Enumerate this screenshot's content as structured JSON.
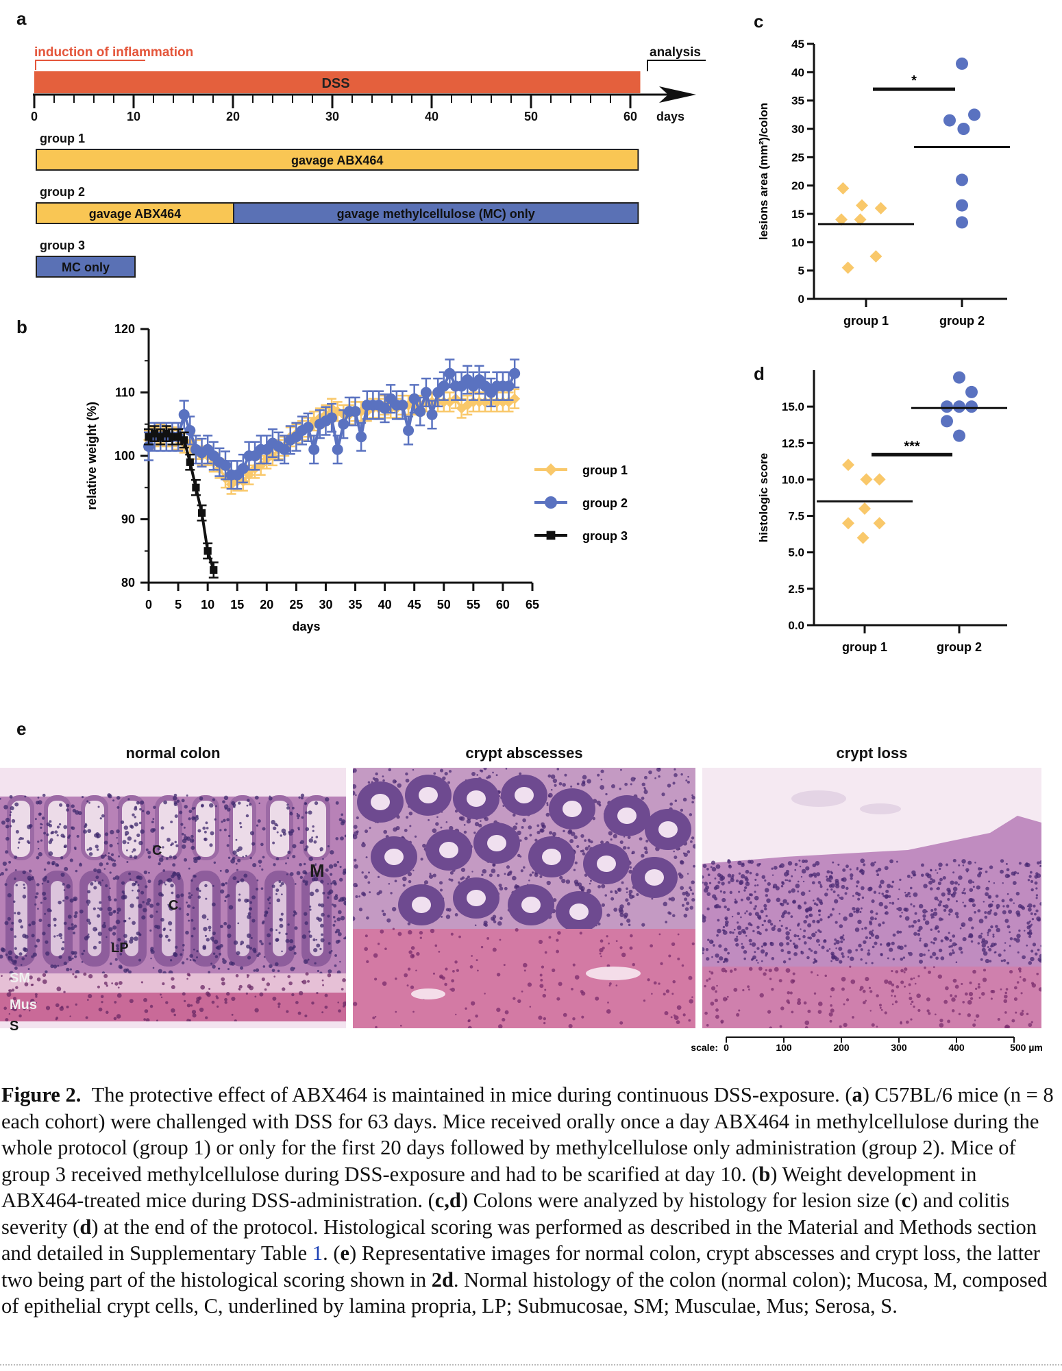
{
  "panel_labels": {
    "a": "a",
    "b": "b",
    "c": "c",
    "d": "d",
    "e": "e"
  },
  "panel_a": {
    "induction_label": "induction of inflammation",
    "dss_label": "DSS",
    "analysis_label": "analysis",
    "axis_ticks": [
      "0",
      "10",
      "20",
      "30",
      "40",
      "50",
      "60"
    ],
    "axis_unit": "days",
    "groups": [
      {
        "name": "group 1",
        "bars": [
          {
            "label": "gavage ABX464",
            "start": 0,
            "end": 61,
            "color": "#f9c654"
          }
        ]
      },
      {
        "name": "group 2",
        "bars": [
          {
            "label": "gavage ABX464",
            "start": 0,
            "end": 20,
            "color": "#f9c654"
          },
          {
            "label": "gavage methylcellulose (MC) only",
            "start": 20,
            "end": 61,
            "color": "#5a71b5"
          }
        ]
      },
      {
        "name": "group 3",
        "bars": [
          {
            "label": "MC only",
            "start": 0,
            "end": 10,
            "color": "#5a71b5"
          }
        ]
      }
    ],
    "colors": {
      "induction": "#e4553a",
      "dss_bar": "#e4603d"
    }
  },
  "chart_data": [
    {
      "panel": "b",
      "type": "line",
      "xlabel": "days",
      "ylabel": "relative weight (%)",
      "xlim": [
        0,
        65
      ],
      "ylim": [
        80,
        120
      ],
      "xticks": [
        0,
        5,
        10,
        15,
        20,
        25,
        30,
        35,
        40,
        45,
        50,
        55,
        60,
        65
      ],
      "yticks": [
        80,
        90,
        100,
        110,
        120
      ],
      "legend_position": "right",
      "series": [
        {
          "name": "group 1",
          "color": "#f9c86a",
          "marker": "diamond",
          "x": [
            0,
            1,
            2,
            3,
            4,
            5,
            6,
            7,
            8,
            9,
            10,
            11,
            12,
            13,
            14,
            15,
            16,
            17,
            18,
            19,
            20,
            21,
            22,
            23,
            24,
            25,
            26,
            27,
            28,
            29,
            30,
            31,
            32,
            33,
            34,
            35,
            36,
            37,
            38,
            39,
            40,
            41,
            42,
            43,
            44,
            45,
            46,
            47,
            48,
            49,
            50,
            51,
            52,
            53,
            54,
            55,
            56,
            57,
            58,
            59,
            60,
            61,
            62
          ],
          "y": [
            102.5,
            103,
            103.5,
            103,
            103,
            102.5,
            102,
            102,
            101,
            100,
            100,
            99,
            98,
            96.5,
            95.5,
            96,
            96,
            97,
            98,
            98.5,
            99.5,
            100,
            101,
            101.5,
            103,
            103.5,
            104,
            104.5,
            105.5,
            106,
            106.5,
            107.5,
            107,
            106.5,
            106.5,
            107,
            107,
            107,
            107.5,
            107.5,
            108,
            107.5,
            107.5,
            108,
            108,
            108,
            108,
            108.5,
            108.5,
            108.5,
            108.5,
            108.5,
            109,
            107.5,
            108,
            108.5,
            108.5,
            108.5,
            108.5,
            108.5,
            108.5,
            108.5,
            109
          ],
          "err": 1.5
        },
        {
          "name": "group 2",
          "color": "#5a72c0",
          "marker": "circle",
          "x": [
            0,
            1,
            2,
            3,
            4,
            5,
            6,
            7,
            8,
            9,
            10,
            11,
            12,
            13,
            14,
            15,
            16,
            17,
            18,
            19,
            20,
            21,
            22,
            23,
            24,
            25,
            26,
            27,
            28,
            29,
            30,
            31,
            32,
            33,
            34,
            35,
            36,
            37,
            38,
            39,
            40,
            41,
            42,
            43,
            44,
            45,
            46,
            47,
            48,
            49,
            50,
            51,
            52,
            53,
            54,
            55,
            56,
            57,
            58,
            59,
            60,
            61,
            62
          ],
          "y": [
            101.5,
            103,
            103,
            103,
            103,
            103,
            106.5,
            104,
            101,
            100.5,
            101,
            100,
            99,
            98.5,
            97,
            97,
            98,
            100,
            100,
            101,
            101,
            102,
            101.5,
            101,
            102.5,
            103,
            104,
            104.5,
            101,
            105,
            105.5,
            106,
            101,
            105,
            107,
            107,
            103,
            108,
            108,
            108,
            107.5,
            109,
            108,
            108,
            104,
            109,
            107,
            110,
            106.5,
            110,
            111,
            113,
            111,
            111,
            112,
            111,
            112,
            111,
            110,
            111,
            111,
            111,
            113
          ],
          "err": 2.2
        },
        {
          "name": "group 3",
          "color": "#111111",
          "marker": "square",
          "x": [
            0,
            1,
            2,
            3,
            4,
            5,
            6,
            7,
            8,
            9,
            10,
            11
          ],
          "y": [
            103,
            103.5,
            103,
            103.5,
            103,
            103,
            102.5,
            99,
            95,
            91,
            85,
            82
          ],
          "err": 1.2
        }
      ]
    },
    {
      "panel": "c",
      "type": "scatter",
      "categories": [
        "group 1",
        "group 2"
      ],
      "ylabel": "lesions area (mm^2)/colon",
      "ylim": [
        0,
        45
      ],
      "yticks": [
        0,
        5,
        10,
        15,
        20,
        25,
        30,
        35,
        40,
        45
      ],
      "series": [
        {
          "name": "group 1",
          "color": "#f9c86a",
          "marker": "diamond",
          "points": [
            [
              -0.28,
              19.5
            ],
            [
              -0.05,
              16.5
            ],
            [
              0.18,
              16
            ],
            [
              -0.3,
              14
            ],
            [
              -0.07,
              14
            ],
            [
              0.12,
              7.5
            ],
            [
              -0.22,
              5.5
            ]
          ],
          "mean": 13.2
        },
        {
          "name": "group 2",
          "color": "#5a72c0",
          "marker": "circle",
          "points": [
            [
              0,
              41.5
            ],
            [
              -0.15,
              31.5
            ],
            [
              0.02,
              30
            ],
            [
              0.15,
              32.5
            ],
            [
              0,
              21
            ],
            [
              0,
              16.5
            ],
            [
              0,
              13.5
            ]
          ],
          "mean": 26.8
        }
      ],
      "significance": {
        "label": "*",
        "y": 37,
        "from": "group 1",
        "to": "group 2"
      }
    },
    {
      "panel": "d",
      "type": "scatter",
      "categories": [
        "group 1",
        "group 2"
      ],
      "ylabel": "histologic score",
      "ylim": [
        0,
        17.5
      ],
      "yticks": [
        0,
        2.5,
        5,
        7.5,
        10,
        12.5,
        15
      ],
      "ytick_labels": [
        "0.0",
        "2.5",
        "5.0",
        "7.5",
        "10.0",
        "12.5",
        "15.0"
      ],
      "series": [
        {
          "name": "group 1",
          "color": "#f9c86a",
          "marker": "diamond",
          "points": [
            [
              -0.2,
              11
            ],
            [
              0.02,
              10
            ],
            [
              0.18,
              10
            ],
            [
              0,
              8
            ],
            [
              -0.2,
              7
            ],
            [
              0.18,
              7
            ],
            [
              -0.02,
              6
            ]
          ],
          "mean": 8.5
        },
        {
          "name": "group 2",
          "color": "#5a72c0",
          "marker": "circle",
          "points": [
            [
              0,
              17
            ],
            [
              0.15,
              16
            ],
            [
              -0.15,
              15
            ],
            [
              0,
              15
            ],
            [
              0.15,
              15
            ],
            [
              -0.15,
              14
            ],
            [
              0,
              13
            ]
          ],
          "mean": 14.9
        }
      ],
      "significance": {
        "label": "***",
        "y": 11.7,
        "from": "group 1",
        "to": "group 2"
      }
    }
  ],
  "panel_e": {
    "titles": [
      "normal colon",
      "crypt abscesses",
      "crypt loss"
    ],
    "labels": {
      "C1": "C",
      "C2": "C",
      "M": "M",
      "LP": "LP",
      "SM": "SM",
      "Mus": "Mus",
      "S": "S"
    },
    "scale_title": "scale:",
    "scale_ticks": [
      "0",
      "100",
      "200",
      "300",
      "400",
      "500 µm"
    ]
  },
  "caption": {
    "fig_label": "Figure 2.",
    "title": "The protective effect of ABX464 is maintained in mice during continuous DSS-exposure.",
    "p1": "(",
    "la": "a",
    "p2": ") C57BL/6 mice (n = 8 each cohort) were challenged with DSS for 63 days. Mice received orally once a day ABX464 in methylcellulose during the whole protocol (group 1) or only for the first 20 days followed by methylcellulose only administration (group 2). Mice of group 3 received methylcellulose during DSS-exposure and had to be scarified at day 10. (",
    "lb": "b",
    "p3": ") Weight development in ABX464-treated mice during DSS-administration. (",
    "lcd": "c,d",
    "p4": ") Colons were analyzed by histology for lesion size (",
    "lc": "c",
    "p5": ") and colitis severity (",
    "ld": "d",
    "p6": ") at the end of the protocol. Histological scoring was performed as described in the Material and Methods section and detailed in Supplementary Table ",
    "table_ref": "1",
    "p7": ". (",
    "le": "e",
    "p8": ") Representative images for normal colon, crypt abscesses and crypt loss, the latter two being part of the histological scoring shown in ",
    "ref2d": "2d",
    "p9": ". Normal histology of the colon (normal colon); Mucosa, M, composed of epithelial crypt cells, C, underlined by lamina propria, LP; Submucosae, SM; Musculae, Mus; Serosa, S."
  }
}
